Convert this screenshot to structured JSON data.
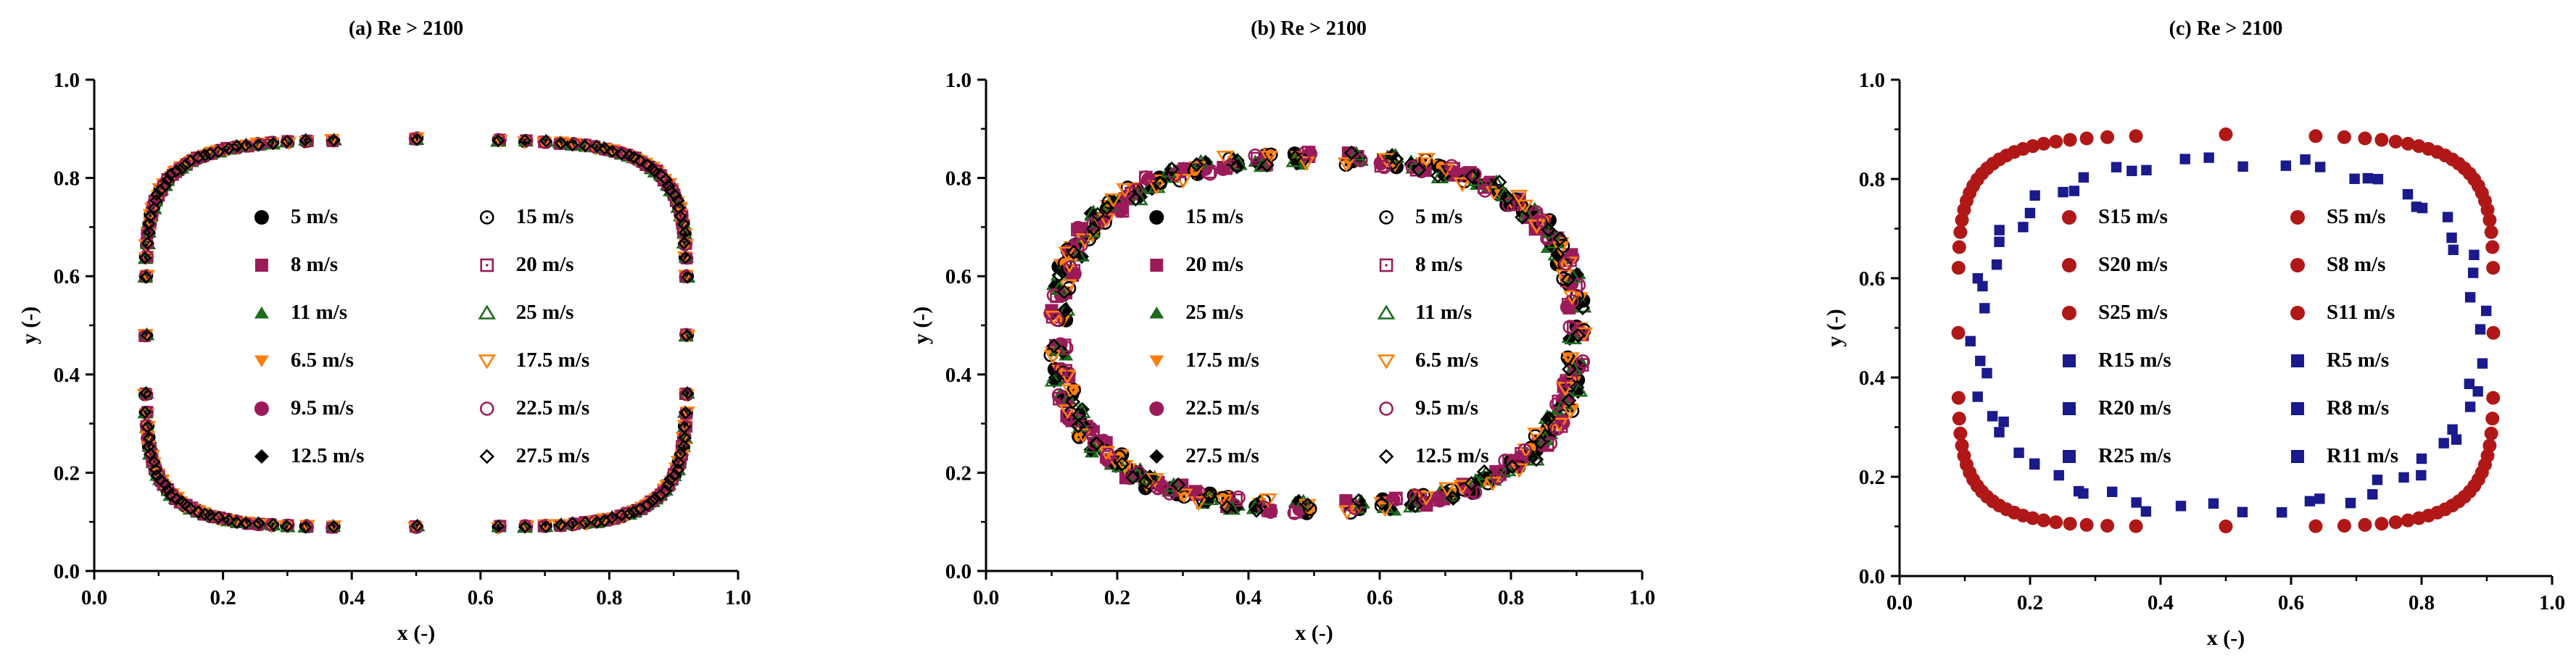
{
  "chart_data": [
    {
      "type": "scatter",
      "title": "(a) Re > 2100",
      "xlabel": "x (-)",
      "ylabel": "y (-)",
      "xlim": [
        0,
        1
      ],
      "ylim": [
        0,
        1
      ],
      "xticks": [
        "0.0",
        "0.2",
        "0.4",
        "0.6",
        "0.8",
        "1.0"
      ],
      "yticks": [
        "0.0",
        "0.2",
        "0.4",
        "0.6",
        "0.8",
        "1.0"
      ],
      "legend": "center",
      "shape": {
        "kind": "rounded-rect",
        "x0": 0.08,
        "x1": 0.92,
        "y0": 0.09,
        "y1": 0.87,
        "apex": 0.01,
        "n": 120
      },
      "series": [
        {
          "name": "5 m/s",
          "marker": "circle",
          "color": "#000000"
        },
        {
          "name": "8 m/s",
          "marker": "square",
          "color": "#9b1b5a"
        },
        {
          "name": "11 m/s",
          "marker": "triangle",
          "color": "#1e6b1e"
        },
        {
          "name": "6.5 m/s",
          "marker": "triangle-down",
          "color": "#ff7f0e"
        },
        {
          "name": "9.5 m/s",
          "marker": "circle",
          "color": "#9b1b5a"
        },
        {
          "name": "12.5 m/s",
          "marker": "diamond",
          "color": "#000000"
        },
        {
          "name": "15 m/s",
          "marker": "circle-open-dot",
          "color": "#000000"
        },
        {
          "name": "20 m/s",
          "marker": "square-open-dot",
          "color": "#9b1b5a"
        },
        {
          "name": "25 m/s",
          "marker": "triangle-open",
          "color": "#1e6b1e"
        },
        {
          "name": "17.5 m/s",
          "marker": "triangle-down-open",
          "color": "#ff7f0e"
        },
        {
          "name": "22.5 m/s",
          "marker": "circle-open",
          "color": "#9b1b5a"
        },
        {
          "name": "27.5 m/s",
          "marker": "diamond-open",
          "color": "#000000"
        }
      ]
    },
    {
      "type": "scatter",
      "title": "(b) Re > 2100",
      "xlabel": "x (-)",
      "ylabel": "y (-)",
      "xlim": [
        0,
        1
      ],
      "ylim": [
        0,
        1
      ],
      "xticks": [
        "0.0",
        "0.2",
        "0.4",
        "0.6",
        "0.8",
        "1.0"
      ],
      "yticks": [
        "0.0",
        "0.2",
        "0.4",
        "0.6",
        "0.8",
        "1.0"
      ],
      "legend": "center",
      "shape": {
        "kind": "ellipse",
        "cx": 0.505,
        "cy": 0.485,
        "rx": 0.395,
        "ry": 0.355,
        "n": 55
      },
      "series": [
        {
          "name": "15 m/s",
          "marker": "circle",
          "color": "#000000"
        },
        {
          "name": "20 m/s",
          "marker": "square",
          "color": "#9b1b5a"
        },
        {
          "name": "25 m/s",
          "marker": "triangle",
          "color": "#1e6b1e"
        },
        {
          "name": "17.5 m/s",
          "marker": "triangle-down",
          "color": "#ff7f0e"
        },
        {
          "name": "22.5 m/s",
          "marker": "circle",
          "color": "#9b1b5a"
        },
        {
          "name": "27.5 m/s",
          "marker": "diamond",
          "color": "#000000"
        },
        {
          "name": "5 m/s",
          "marker": "circle-open-dot",
          "color": "#000000"
        },
        {
          "name": "8 m/s",
          "marker": "square-open-dot",
          "color": "#9b1b5a"
        },
        {
          "name": "11 m/s",
          "marker": "triangle-open",
          "color": "#1e6b1e"
        },
        {
          "name": "6.5 m/s",
          "marker": "triangle-down-open",
          "color": "#ff7f0e"
        },
        {
          "name": "9.5 m/s",
          "marker": "circle-open",
          "color": "#9b1b5a"
        },
        {
          "name": "12.5 m/s",
          "marker": "diamond-open",
          "color": "#000000"
        }
      ]
    },
    {
      "type": "scatter",
      "title": "(c) Re > 2100",
      "xlabel": "x (-)",
      "ylabel": "y (-)",
      "xlim": [
        0,
        1
      ],
      "ylim": [
        0,
        1
      ],
      "xticks": [
        "0.0",
        "0.2",
        "0.4",
        "0.6",
        "0.8",
        "1.0"
      ],
      "yticks": [
        "0.0",
        "0.2",
        "0.4",
        "0.6",
        "0.8",
        "1.0"
      ],
      "legend": "center",
      "shapes": {
        "S": {
          "kind": "rounded-rect",
          "x0": 0.09,
          "x1": 0.91,
          "y0": 0.1,
          "y1": 0.88,
          "apex": 0.01,
          "n": 96
        },
        "R": {
          "kind": "ellipse",
          "cx": 0.505,
          "cy": 0.485,
          "rx": 0.385,
          "ry": 0.35,
          "n": 70
        }
      },
      "series": [
        {
          "name": "S15 m/s",
          "marker": "circle",
          "color": "#b01818",
          "group": "S"
        },
        {
          "name": "S20 m/s",
          "marker": "circle",
          "color": "#b01818",
          "group": "S"
        },
        {
          "name": "S25 m/s",
          "marker": "circle",
          "color": "#b01818",
          "group": "S"
        },
        {
          "name": "R15 m/s",
          "marker": "square",
          "color": "#1a1a8c",
          "group": "R"
        },
        {
          "name": "R20 m/s",
          "marker": "square",
          "color": "#1a1a8c",
          "group": "R"
        },
        {
          "name": "R25 m/s",
          "marker": "square",
          "color": "#1a1a8c",
          "group": "R"
        },
        {
          "name": "S5 m/s",
          "marker": "circle",
          "color": "#b01818",
          "group": "S"
        },
        {
          "name": "S8 m/s",
          "marker": "circle",
          "color": "#b01818",
          "group": "S"
        },
        {
          "name": "S11 m/s",
          "marker": "circle",
          "color": "#b01818",
          "group": "S"
        },
        {
          "name": "R5 m/s",
          "marker": "square",
          "color": "#1a1a8c",
          "group": "R"
        },
        {
          "name": "R8 m/s",
          "marker": "square",
          "color": "#1a1a8c",
          "group": "R"
        },
        {
          "name": "R11 m/s",
          "marker": "square",
          "color": "#1a1a8c",
          "group": "R"
        }
      ]
    }
  ]
}
